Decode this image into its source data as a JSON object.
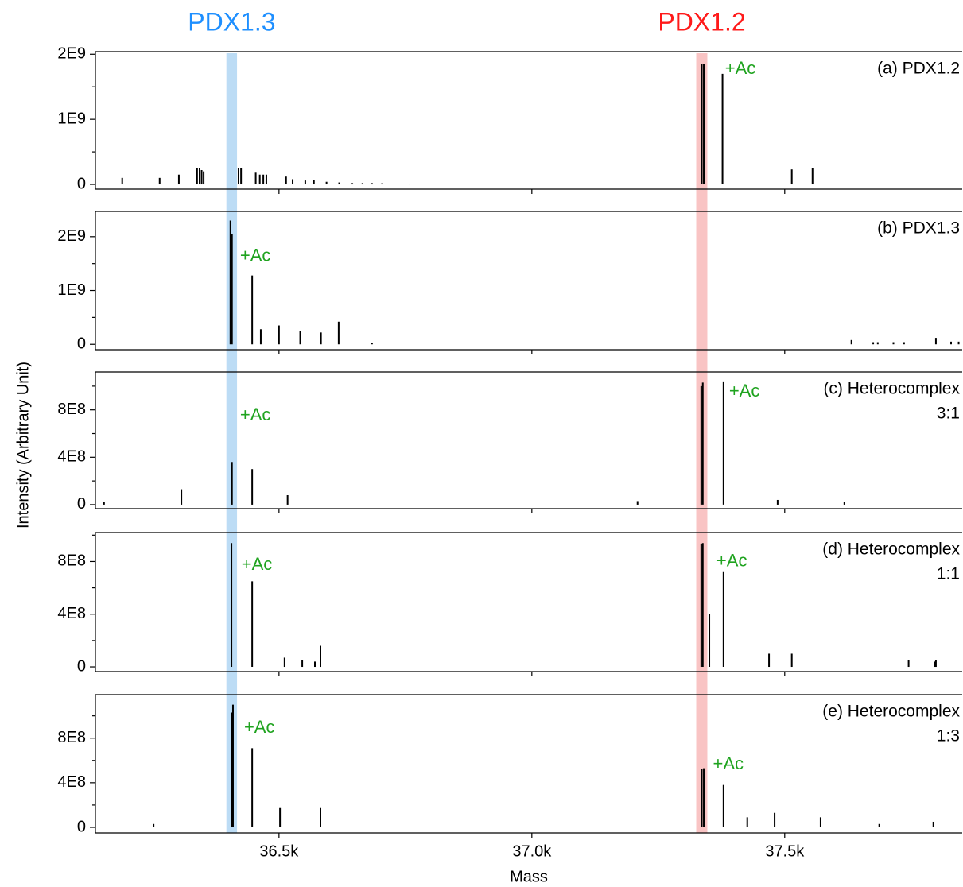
{
  "figure": {
    "x_label": "Mass",
    "y_label": "Intensity (Arbitrary Unit)",
    "xlim": [
      36137,
      37851
    ],
    "xticks": [
      {
        "value": 36500,
        "label": "36.5k"
      },
      {
        "value": 37000,
        "label": "37.0k"
      },
      {
        "value": 37500,
        "label": "37.5k"
      }
    ],
    "annotation_color": "#1fa31f",
    "highlights": [
      {
        "label": "PDX1.3",
        "range": [
          36396,
          36417
        ],
        "color": "#bcdcf5",
        "label_color": "#1e8fff"
      },
      {
        "label": "PDX1.2",
        "range": [
          37325,
          37347
        ],
        "color": "#f9c4c4",
        "label_color": "#ff1a1a"
      }
    ]
  },
  "chart_data": [
    {
      "type": "bar",
      "label": [
        "(a) PDX1.2"
      ],
      "color": "#000000",
      "x": [
        36190,
        36264,
        36302,
        36338,
        36343,
        36347,
        36351,
        36420,
        36425,
        36454,
        36462,
        36469,
        36475,
        36514,
        36527,
        36552,
        36569,
        36594,
        36619,
        36645,
        36665,
        36684,
        36704,
        36758,
        37336,
        37340,
        37377,
        37514,
        37555
      ],
      "values": [
        100000000,
        100000000,
        150000000,
        250000000,
        250000000,
        220000000,
        200000000,
        250000000,
        250000000,
        180000000,
        150000000,
        150000000,
        150000000,
        120000000,
        80000000,
        60000000,
        70000000,
        40000000,
        30000000,
        20000000,
        20000000,
        20000000,
        20000000,
        10000000,
        1850000000,
        1850000000,
        1700000000,
        230000000,
        250000000
      ],
      "ylim": [
        -73000000,
        2040000000
      ],
      "yticks": [
        {
          "value": 0,
          "label": "0"
        },
        {
          "value": 1000000000,
          "label": "1E9"
        },
        {
          "value": 2000000000,
          "label": "2E9"
        }
      ],
      "minor_yticks": [
        500000000,
        1500000000
      ],
      "annotations": [
        {
          "text": "+Ac",
          "x": 37382,
          "y": 1770000000
        }
      ]
    },
    {
      "type": "bar",
      "label": [
        "(b) PDX1.3"
      ],
      "color": "#000000",
      "x": [
        36404,
        36407,
        36447,
        36464,
        36500,
        36542,
        36583,
        36618,
        36684,
        37632,
        37675,
        37684,
        37715,
        37736,
        37799,
        37829,
        37844
      ],
      "values": [
        2300000000,
        2050000000,
        1280000000,
        280000000,
        350000000,
        250000000,
        220000000,
        420000000,
        20000000,
        80000000,
        40000000,
        40000000,
        40000000,
        40000000,
        120000000,
        50000000,
        50000000
      ],
      "ylim": [
        -100000000,
        2470000000
      ],
      "yticks": [
        {
          "value": 0,
          "label": "0"
        },
        {
          "value": 1000000000,
          "label": "1E9"
        },
        {
          "value": 2000000000,
          "label": "2E9"
        }
      ],
      "minor_yticks": [
        500000000,
        1500000000
      ],
      "annotations": [
        {
          "text": "+Ac",
          "x": 36423,
          "y": 1630000000
        }
      ]
    },
    {
      "type": "bar",
      "label": [
        "(c) Heterocomplex",
        "3:1"
      ],
      "color": "#000000",
      "x": [
        36154,
        36307,
        36407,
        36447,
        36517,
        37209,
        37335,
        37338,
        37379,
        37486,
        37618
      ],
      "values": [
        20000000,
        130000000,
        360000000,
        300000000,
        80000000,
        30000000,
        1000000000,
        1030000000,
        1040000000,
        40000000,
        20000000
      ],
      "ylim": [
        -34000000,
        1120000000
      ],
      "yticks": [
        {
          "value": 0,
          "label": "0"
        },
        {
          "value": 400000000,
          "label": "4E8"
        },
        {
          "value": 800000000,
          "label": "8E8"
        }
      ],
      "minor_yticks": [
        200000000,
        600000000,
        1000000000
      ],
      "annotations": [
        {
          "text": "+Ac",
          "x": 37390,
          "y": 950000000
        },
        {
          "text": "+Ac",
          "x": 36423,
          "y": 750000000
        }
      ]
    },
    {
      "type": "bar",
      "label": [
        "(d) Heterocomplex",
        "1:1"
      ],
      "color": "#000000",
      "x": [
        36406,
        36447,
        36511,
        36546,
        36571,
        36582,
        37335,
        37338,
        37351,
        37379,
        37469,
        37514,
        37745,
        37796,
        37799
      ],
      "values": [
        940000000,
        650000000,
        70000000,
        50000000,
        40000000,
        160000000,
        930000000,
        940000000,
        400000000,
        720000000,
        100000000,
        100000000,
        50000000,
        40000000,
        50000000
      ],
      "ylim": [
        -36000000,
        1020000000
      ],
      "yticks": [
        {
          "value": 0,
          "label": "0"
        },
        {
          "value": 400000000,
          "label": "4E8"
        },
        {
          "value": 800000000,
          "label": "8E8"
        }
      ],
      "minor_yticks": [
        200000000,
        600000000,
        1000000000
      ],
      "annotations": [
        {
          "text": "+Ac",
          "x": 36426,
          "y": 770000000
        },
        {
          "text": "+Ac",
          "x": 37365,
          "y": 800000000
        }
      ]
    },
    {
      "type": "bar",
      "label": [
        "(e) Heterocomplex",
        "1:3"
      ],
      "color": "#000000",
      "x": [
        36252,
        36406,
        36409,
        36447,
        36502,
        36582,
        37336,
        37340,
        37379,
        37426,
        37480,
        37571,
        37687,
        37794
      ],
      "values": [
        30000000,
        1030000000,
        1100000000,
        710000000,
        180000000,
        180000000,
        520000000,
        530000000,
        380000000,
        90000000,
        130000000,
        90000000,
        30000000,
        50000000
      ],
      "ylim": [
        -50000000,
        1190000000
      ],
      "yticks": [
        {
          "value": 0,
          "label": "0"
        },
        {
          "value": 400000000,
          "label": "4E8"
        },
        {
          "value": 800000000,
          "label": "8E8"
        }
      ],
      "minor_yticks": [
        200000000,
        600000000,
        1000000000
      ],
      "annotations": [
        {
          "text": "+Ac",
          "x": 36431,
          "y": 890000000
        },
        {
          "text": "+Ac",
          "x": 37358,
          "y": 560000000
        }
      ]
    }
  ]
}
